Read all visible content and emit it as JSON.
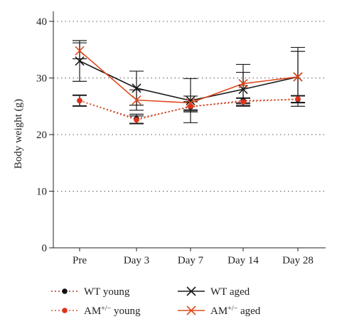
{
  "chart_data": {
    "type": "line",
    "categories": [
      "Pre",
      "Day 3",
      "Day 7",
      "Day 14",
      "Day 28"
    ],
    "ylabel": "Body weight (g)",
    "ylim": [
      0,
      40
    ],
    "yticks": [
      0,
      10,
      20,
      30,
      40
    ],
    "grid": "horizontal dotted",
    "legend_position": "bottom",
    "series": [
      {
        "name": "WT young",
        "legend_base": "WT",
        "legend_sup": "",
        "legend_suffix": " young",
        "marker": "dot",
        "line_style": "dotted",
        "color": "#b33a2a",
        "marker_color": "#111111",
        "values": [
          26.0,
          22.8,
          24.9,
          26.0,
          26.2
        ],
        "errors": [
          1.0,
          0.8,
          0.9,
          0.5,
          0.6
        ]
      },
      {
        "name": "AM+/- young",
        "legend_base": "AM",
        "legend_sup": "+/−",
        "legend_suffix": " young",
        "marker": "dot",
        "line_style": "dotted",
        "color": "#e05a2b",
        "marker_color": "#e0321b",
        "values": [
          26.0,
          22.6,
          25.0,
          25.8,
          26.3
        ],
        "errors": [
          0.9,
          0.7,
          0.8,
          0.6,
          0.6
        ]
      },
      {
        "name": "WT aged",
        "legend_base": "WT",
        "legend_sup": "",
        "legend_suffix": " aged",
        "marker": "x",
        "line_style": "solid",
        "color": "#1a1a1a",
        "marker_color": "#1a1a1a",
        "values": [
          33.0,
          28.2,
          26.0,
          28.0,
          30.2
        ],
        "errors": [
          3.6,
          3.0,
          3.9,
          3.0,
          5.2
        ]
      },
      {
        "name": "AM+/- aged",
        "legend_base": "AM",
        "legend_sup": "+/−",
        "legend_suffix": " aged",
        "marker": "x",
        "line_style": "solid",
        "color": "#e04a1f",
        "marker_color": "#e04a1f",
        "values": [
          34.8,
          26.1,
          25.6,
          29.0,
          30.2
        ],
        "errors": [
          1.4,
          1.8,
          1.2,
          3.4,
          4.5
        ]
      }
    ]
  }
}
